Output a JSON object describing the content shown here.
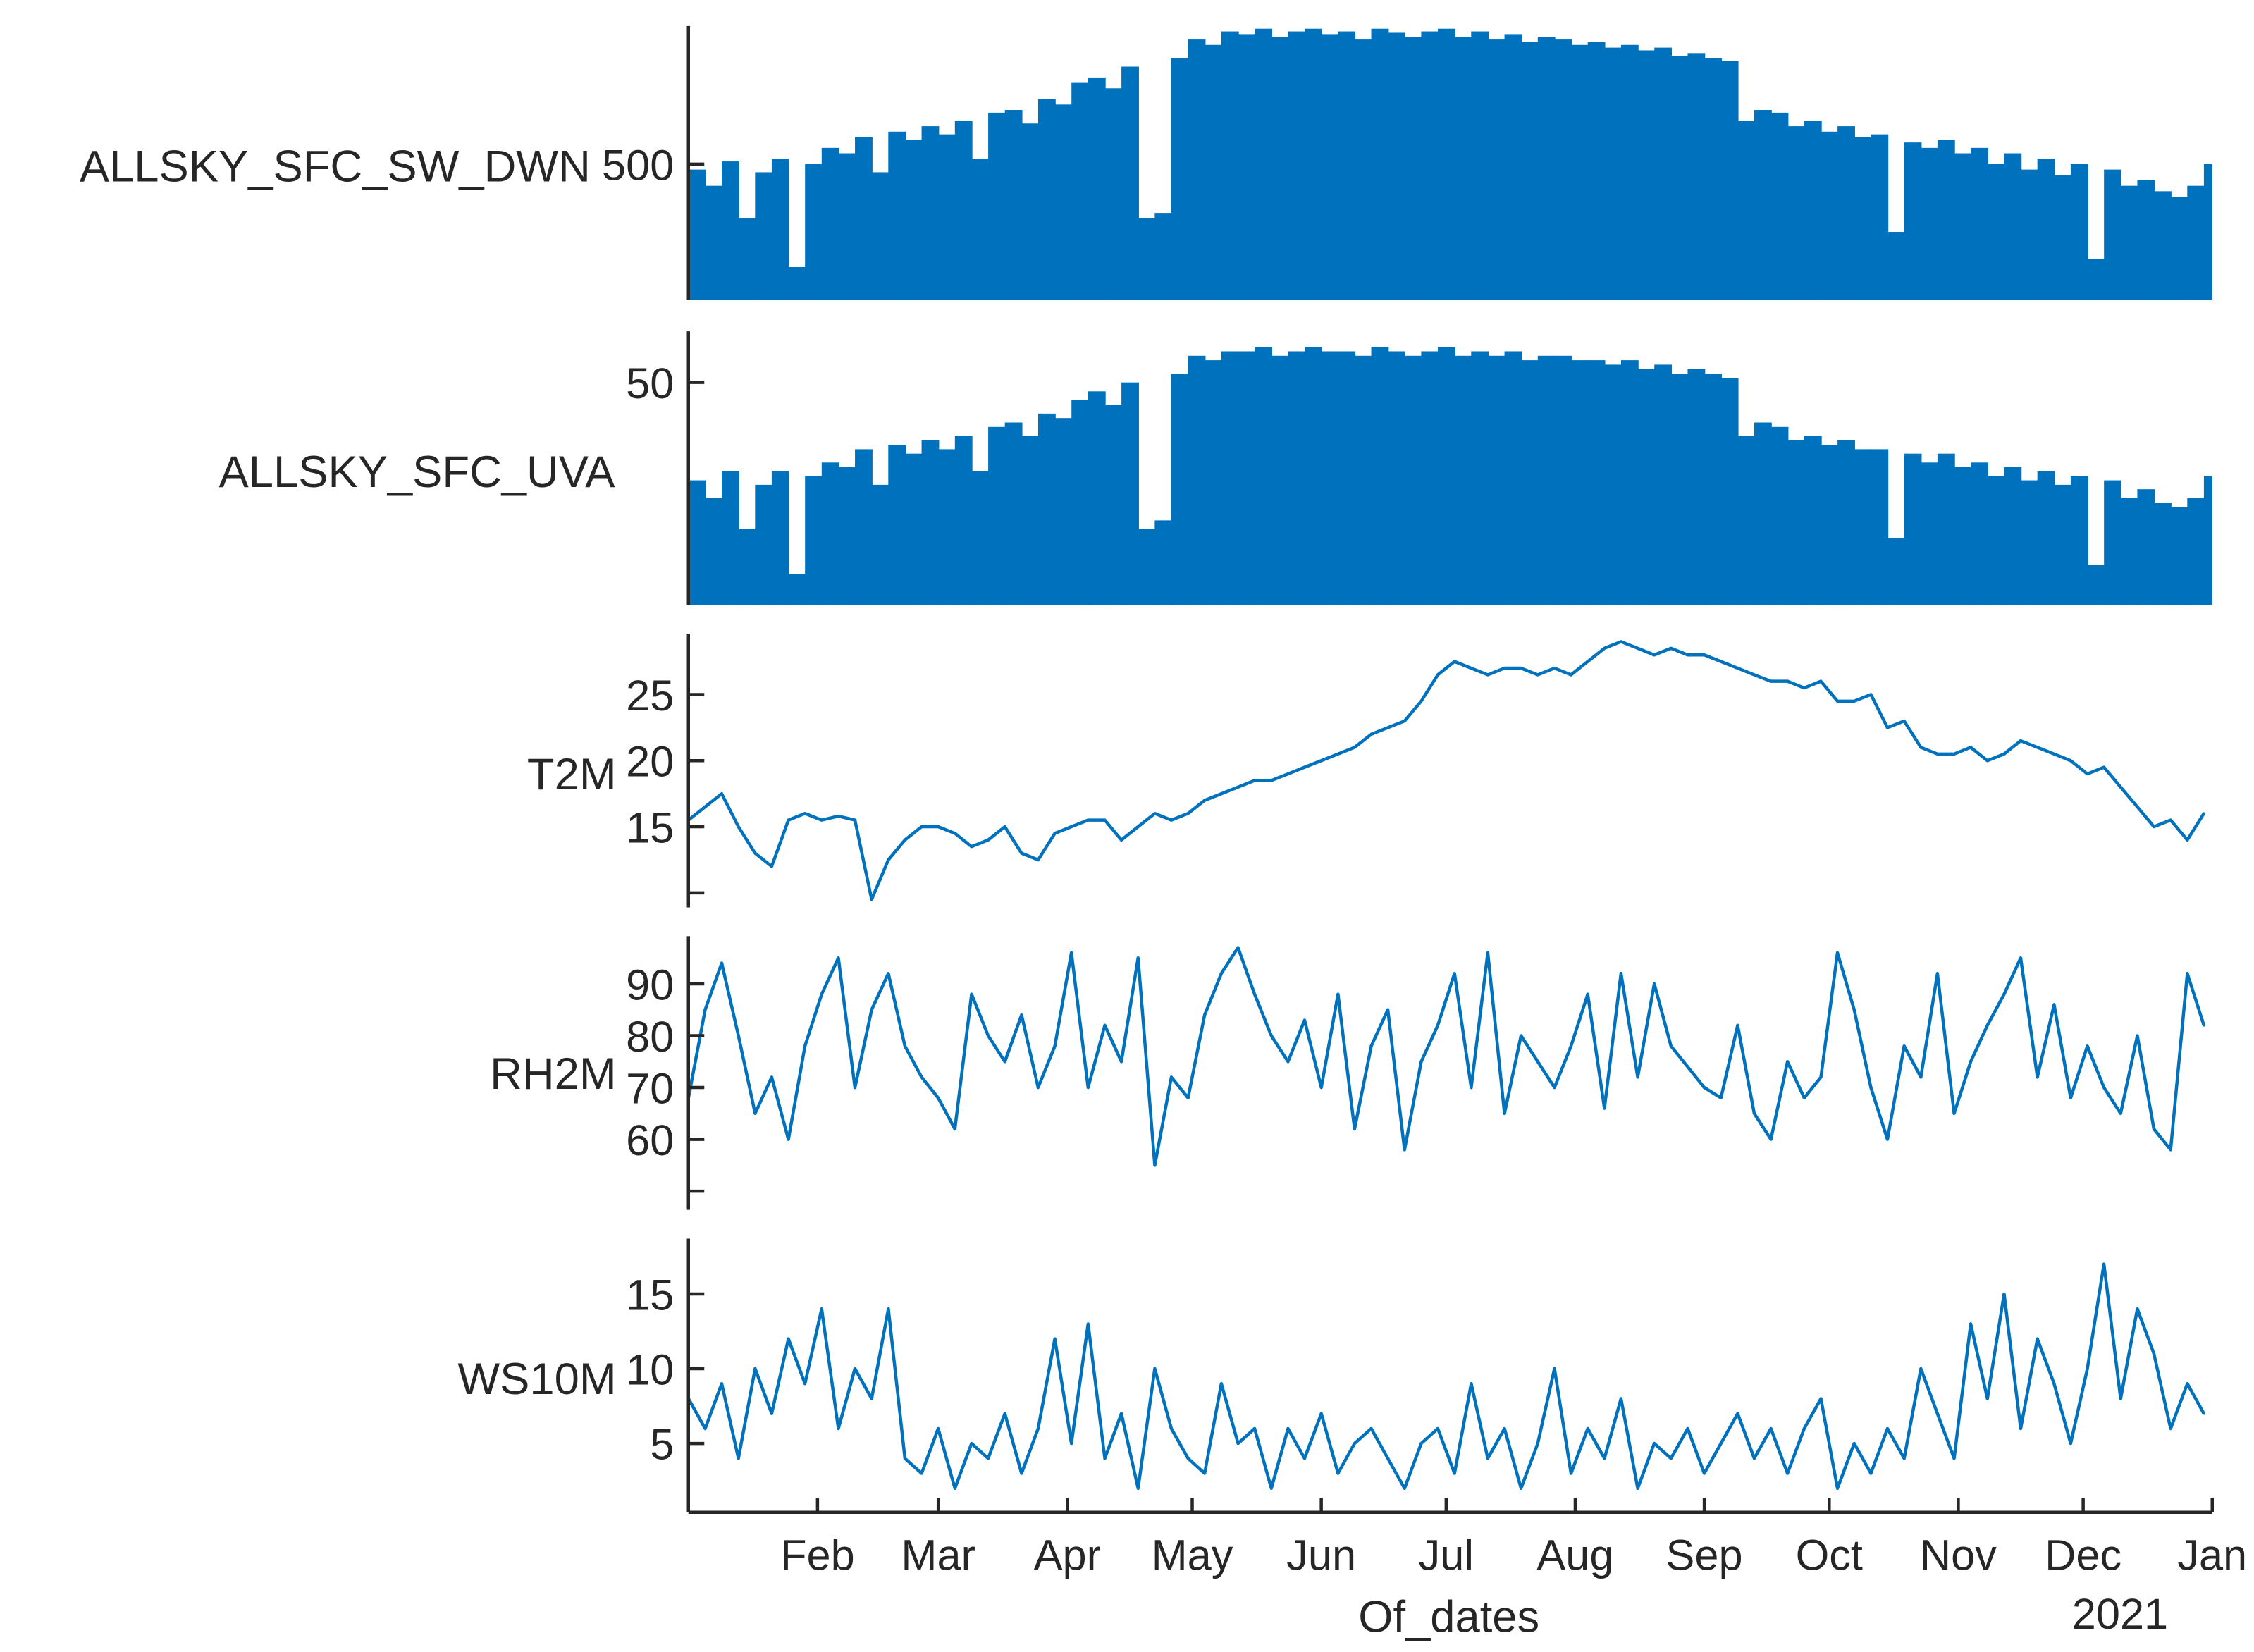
{
  "chart_data": {
    "type": "stacked-line",
    "xlabel": "Of_dates",
    "xlim": [
      "2020-01-01",
      "2021-01-01"
    ],
    "xticks": [
      "2020-02-01",
      "2020-03-01",
      "2020-04-01",
      "2020-05-01",
      "2020-06-01",
      "2020-07-01",
      "2020-08-01",
      "2020-09-01",
      "2020-10-01",
      "2020-11-01",
      "2020-12-01",
      "2021-01-01"
    ],
    "xtick_labels": [
      "Feb",
      "Mar",
      "Apr",
      "May",
      "Jun",
      "Jul",
      "Aug",
      "Sep",
      "Oct",
      "Nov",
      "Dec",
      "Jan"
    ],
    "x_secondary_label": "2021",
    "line_color": "#0072BD",
    "axis_color": "#262626",
    "grid": false,
    "dates": [
      "2020-01-01",
      "2020-01-05",
      "2020-01-09",
      "2020-01-13",
      "2020-01-17",
      "2020-01-21",
      "2020-01-25",
      "2020-01-29",
      "2020-02-02",
      "2020-02-06",
      "2020-02-10",
      "2020-02-14",
      "2020-02-18",
      "2020-02-22",
      "2020-02-26",
      "2020-03-01",
      "2020-03-05",
      "2020-03-09",
      "2020-03-13",
      "2020-03-17",
      "2020-03-21",
      "2020-03-25",
      "2020-03-29",
      "2020-04-02",
      "2020-04-06",
      "2020-04-10",
      "2020-04-14",
      "2020-04-18",
      "2020-04-22",
      "2020-04-26",
      "2020-04-30",
      "2020-05-04",
      "2020-05-08",
      "2020-05-12",
      "2020-05-16",
      "2020-05-20",
      "2020-05-24",
      "2020-05-28",
      "2020-06-01",
      "2020-06-05",
      "2020-06-09",
      "2020-06-13",
      "2020-06-17",
      "2020-06-21",
      "2020-06-25",
      "2020-06-29",
      "2020-07-03",
      "2020-07-07",
      "2020-07-11",
      "2020-07-15",
      "2020-07-19",
      "2020-07-23",
      "2020-07-27",
      "2020-07-31",
      "2020-08-04",
      "2020-08-08",
      "2020-08-12",
      "2020-08-16",
      "2020-08-20",
      "2020-08-24",
      "2020-08-28",
      "2020-09-01",
      "2020-09-05",
      "2020-09-09",
      "2020-09-13",
      "2020-09-17",
      "2020-09-21",
      "2020-09-25",
      "2020-09-29",
      "2020-10-03",
      "2020-10-07",
      "2020-10-11",
      "2020-10-15",
      "2020-10-19",
      "2020-10-23",
      "2020-10-27",
      "2020-10-31",
      "2020-11-04",
      "2020-11-08",
      "2020-11-12",
      "2020-11-16",
      "2020-11-20",
      "2020-11-24",
      "2020-11-28",
      "2020-12-02",
      "2020-12-06",
      "2020-12-10",
      "2020-12-14",
      "2020-12-18",
      "2020-12-22",
      "2020-12-26",
      "2020-12-30"
    ],
    "panels": [
      {
        "name": "ALLSKY_SFC_SW_DWN",
        "style": "filled-spikes",
        "ylim": [
          0,
          1010
        ],
        "yticks": [
          500
        ],
        "ytick_labels": [
          "500"
        ],
        "values": [
          480,
          420,
          510,
          300,
          470,
          520,
          120,
          500,
          560,
          540,
          600,
          470,
          620,
          590,
          640,
          610,
          660,
          520,
          690,
          700,
          650,
          740,
          720,
          800,
          820,
          780,
          860,
          300,
          320,
          890,
          960,
          940,
          990,
          980,
          1000,
          970,
          990,
          1000,
          980,
          990,
          960,
          1000,
          985,
          970,
          990,
          1000,
          970,
          990,
          960,
          980,
          950,
          970,
          960,
          940,
          950,
          930,
          940,
          920,
          930,
          900,
          910,
          890,
          880,
          660,
          700,
          690,
          640,
          660,
          620,
          640,
          600,
          610,
          250,
          580,
          560,
          590,
          540,
          560,
          500,
          540,
          480,
          520,
          460,
          500,
          150,
          480,
          420,
          440,
          400,
          380,
          420,
          500
        ]
      },
      {
        "name": "ALLSKY_SFC_UVA",
        "style": "filled-spikes",
        "ylim": [
          0,
          61.5
        ],
        "yticks": [
          50
        ],
        "ytick_labels": [
          "50"
        ],
        "values": [
          28,
          24,
          30,
          17,
          27,
          30,
          7,
          29,
          32,
          31,
          35,
          27,
          36,
          34,
          37,
          35,
          38,
          30,
          40,
          41,
          38,
          43,
          42,
          46,
          48,
          45,
          50,
          17,
          19,
          52,
          56,
          55,
          57,
          57,
          58,
          56,
          57,
          58,
          57,
          57,
          56,
          58,
          57,
          56,
          57,
          58,
          56,
          57,
          56,
          57,
          55,
          56,
          56,
          55,
          55,
          54,
          55,
          53,
          54,
          52,
          53,
          52,
          51,
          38,
          41,
          40,
          37,
          38,
          36,
          37,
          35,
          35,
          15,
          34,
          32,
          34,
          31,
          32,
          29,
          31,
          28,
          30,
          27,
          29,
          9,
          28,
          24,
          26,
          23,
          22,
          24,
          29
        ]
      },
      {
        "name": "T2M",
        "style": "line",
        "ylim": [
          8.9,
          29.6
        ],
        "yticks": [
          10,
          15,
          20,
          25
        ],
        "ytick_labels": [
          "",
          "15",
          "20",
          "25"
        ],
        "values": [
          15.5,
          16.5,
          17.5,
          15,
          13,
          12,
          15.5,
          16,
          15.5,
          15.8,
          15.5,
          9.5,
          12.5,
          14,
          15,
          15,
          14.5,
          13.5,
          14,
          15,
          13,
          12.5,
          14.5,
          15,
          15.5,
          15.5,
          14,
          15,
          16,
          15.5,
          16,
          17,
          17.5,
          18,
          18.5,
          18.5,
          19,
          19.5,
          20,
          20.5,
          21,
          22,
          22.5,
          23,
          24.5,
          26.5,
          27.5,
          27,
          26.5,
          27,
          27,
          26.5,
          27,
          26.5,
          27.5,
          28.5,
          29,
          28.5,
          28,
          28.5,
          28,
          28,
          27.5,
          27,
          26.5,
          26,
          26,
          25.5,
          26,
          24.5,
          24.5,
          25,
          22.5,
          23,
          21,
          20.5,
          20.5,
          21,
          20,
          20.5,
          21.5,
          21,
          20.5,
          20,
          19,
          19.5,
          18,
          16.5,
          15,
          15.5,
          14,
          16
        ]
      },
      {
        "name": "RH2M",
        "style": "line",
        "ylim": [
          46.4,
          99.2
        ],
        "yticks": [
          50,
          60,
          70,
          80,
          90
        ],
        "ytick_labels": [
          "",
          "60",
          "70",
          "80",
          "90"
        ],
        "values": [
          68,
          85,
          94,
          80,
          65,
          72,
          60,
          78,
          88,
          95,
          70,
          85,
          92,
          78,
          72,
          68,
          62,
          88,
          80,
          75,
          84,
          70,
          78,
          96,
          70,
          82,
          75,
          95,
          55,
          72,
          68,
          84,
          92,
          97,
          88,
          80,
          75,
          83,
          70,
          88,
          62,
          78,
          85,
          58,
          75,
          82,
          92,
          70,
          96,
          65,
          80,
          75,
          70,
          78,
          88,
          66,
          92,
          72,
          90,
          78,
          74,
          70,
          68,
          82,
          65,
          60,
          75,
          68,
          72,
          96,
          85,
          70,
          60,
          78,
          72,
          92,
          65,
          75,
          82,
          88,
          95,
          72,
          86,
          68,
          78,
          70,
          65,
          80,
          62,
          58,
          92,
          82
        ]
      },
      {
        "name": "WS10M",
        "style": "line",
        "ylim": [
          0.4,
          18.7
        ],
        "yticks": [
          5,
          10,
          15
        ],
        "ytick_labels": [
          "5",
          "10",
          "15"
        ],
        "values": [
          8,
          6,
          9,
          4,
          10,
          7,
          12,
          9,
          14,
          6,
          10,
          8,
          14,
          4,
          3,
          6,
          2,
          5,
          4,
          7,
          3,
          6,
          12,
          5,
          13,
          4,
          7,
          2,
          10,
          6,
          4,
          3,
          9,
          5,
          6,
          2,
          6,
          4,
          7,
          3,
          5,
          6,
          4,
          2,
          5,
          6,
          3,
          9,
          4,
          6,
          2,
          5,
          10,
          3,
          6,
          4,
          8,
          2,
          5,
          4,
          6,
          3,
          5,
          7,
          4,
          6,
          3,
          6,
          8,
          2,
          5,
          3,
          6,
          4,
          10,
          7,
          4,
          13,
          8,
          15,
          6,
          12,
          9,
          5,
          10,
          17,
          8,
          14,
          11,
          6,
          9,
          7
        ]
      }
    ]
  }
}
